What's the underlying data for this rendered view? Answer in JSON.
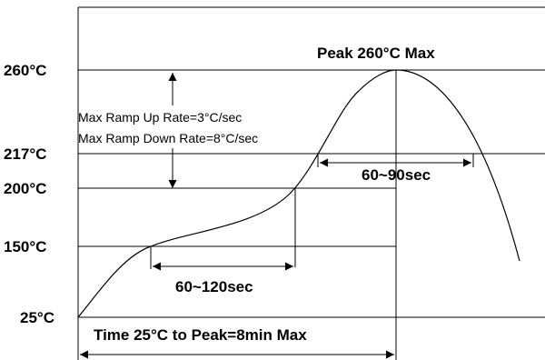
{
  "chart_data": {
    "type": "line",
    "title": "",
    "xlabel": "",
    "ylabel": "",
    "y_ticks": [
      {
        "value": 25,
        "label": "25°C"
      },
      {
        "value": 150,
        "label": "150°C"
      },
      {
        "value": 200,
        "label": "200°C"
      },
      {
        "value": 217,
        "label": "217°C"
      },
      {
        "value": 260,
        "label": "260°C"
      }
    ],
    "annotations": {
      "peak": "Peak 260°C Max",
      "ramp_up": "Max Ramp Up Rate=3°C/sec",
      "ramp_down": "Max Ramp Down Rate=8°C/sec",
      "soak": "60~120sec",
      "reflow": "60~90sec",
      "total": "Time 25°C to Peak=8min Max"
    },
    "colors": {
      "line": "#000000",
      "background": "#ffffff"
    }
  }
}
